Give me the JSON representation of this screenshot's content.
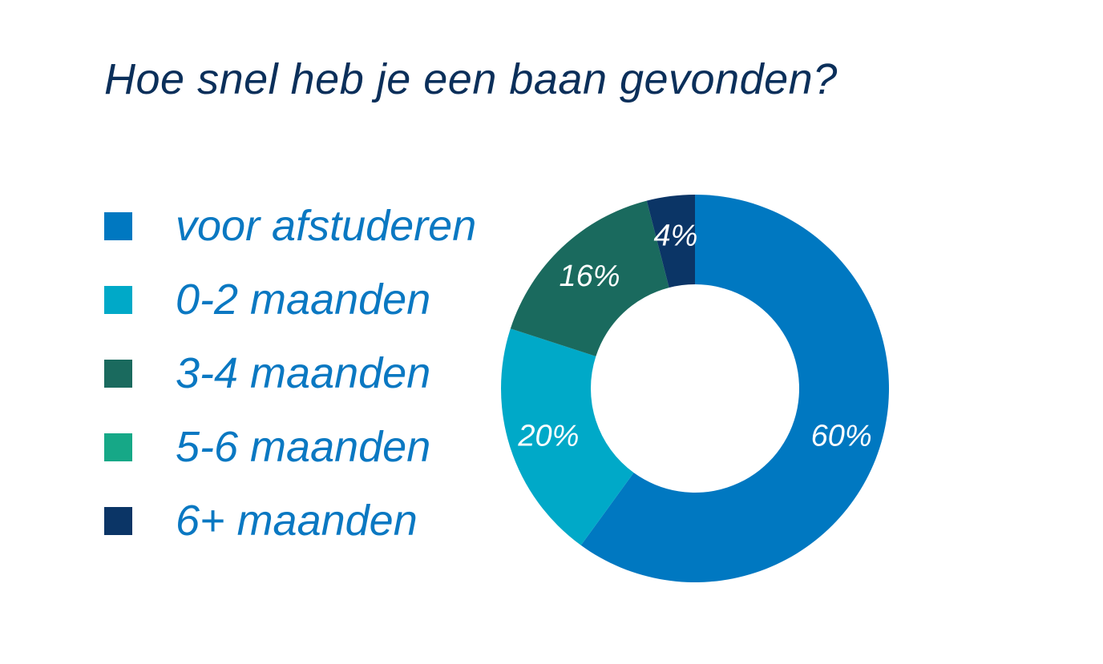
{
  "chart_data": {
    "type": "pie",
    "title": "Hoe snel heb je een baan gevonden?",
    "categories": [
      "voor afstuderen",
      "0-2 maanden",
      "3-4 maanden",
      "5-6 maanden",
      "6+ maanden"
    ],
    "values": [
      60,
      20,
      16,
      0,
      4
    ],
    "value_labels": [
      "60%",
      "20%",
      "16%",
      "",
      "4%"
    ],
    "colors": [
      "#0078c1",
      "#00a9c8",
      "#1a6a5e",
      "#16a887",
      "#0b3566"
    ],
    "donut": true,
    "start": "12 o'clock",
    "direction": "clockwise",
    "legend_position": "left"
  }
}
